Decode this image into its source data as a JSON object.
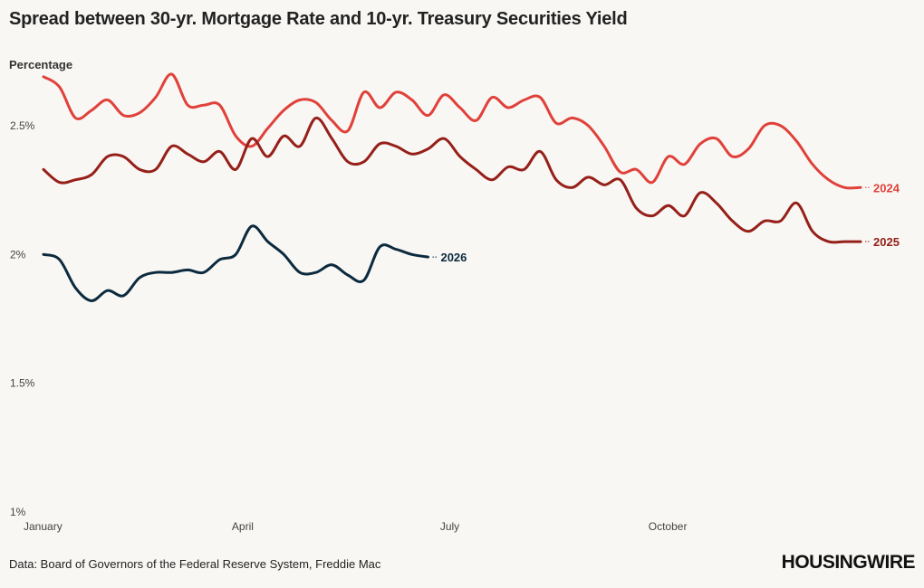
{
  "chart_data": {
    "type": "line",
    "title": "Spread between 30-yr. Mortgage Rate and 10-yr. Treasury Securities Yield",
    "ylabel": "Percentage",
    "xlabel": "",
    "ylim": [
      1,
      2.7
    ],
    "yticks": [
      {
        "value": 1,
        "label": "1%"
      },
      {
        "value": 1.5,
        "label": "1.5%"
      },
      {
        "value": 2,
        "label": "2%"
      },
      {
        "value": 2.5,
        "label": "2.5%"
      }
    ],
    "xlim": [
      1,
      52
    ],
    "xticks": [
      {
        "value": 1,
        "label": "January"
      },
      {
        "value": 14,
        "label": "April"
      },
      {
        "value": 27,
        "label": "July"
      },
      {
        "value": 40,
        "label": "October"
      }
    ],
    "grid": false,
    "legend": "direct-labels",
    "series": [
      {
        "name": "2024",
        "color": "#e0413a",
        "x": [
          1,
          2,
          3,
          4,
          5,
          6,
          7,
          8,
          9,
          10,
          11,
          12,
          13,
          14,
          15,
          16,
          17,
          18,
          19,
          20,
          21,
          22,
          23,
          24,
          25,
          26,
          27,
          28,
          29,
          30,
          31,
          32,
          33,
          34,
          35,
          36,
          37,
          38,
          39,
          40,
          41,
          42,
          43,
          44,
          45,
          46,
          47,
          48,
          49,
          50,
          51,
          52
        ],
        "values": [
          2.69,
          2.65,
          2.53,
          2.56,
          2.6,
          2.54,
          2.55,
          2.61,
          2.7,
          2.58,
          2.58,
          2.58,
          2.46,
          2.42,
          2.49,
          2.56,
          2.6,
          2.59,
          2.52,
          2.48,
          2.63,
          2.57,
          2.63,
          2.6,
          2.54,
          2.62,
          2.57,
          2.52,
          2.61,
          2.57,
          2.6,
          2.61,
          2.51,
          2.53,
          2.5,
          2.42,
          2.32,
          2.33,
          2.28,
          2.38,
          2.35,
          2.43,
          2.45,
          2.38,
          2.41,
          2.5,
          2.5,
          2.44,
          2.35,
          2.29,
          2.26,
          2.26
        ]
      },
      {
        "name": "2025",
        "color": "#962019",
        "x": [
          1,
          2,
          3,
          4,
          5,
          6,
          7,
          8,
          9,
          10,
          11,
          12,
          13,
          14,
          15,
          16,
          17,
          18,
          19,
          20,
          21,
          22,
          23,
          24,
          25,
          26,
          27,
          28,
          29,
          30,
          31,
          32,
          33,
          34,
          35,
          36,
          37,
          38,
          39,
          40,
          41,
          42,
          43,
          44,
          45,
          46,
          47,
          48,
          49,
          50,
          51,
          52
        ],
        "values": [
          2.33,
          2.28,
          2.29,
          2.31,
          2.38,
          2.38,
          2.33,
          2.33,
          2.42,
          2.39,
          2.36,
          2.4,
          2.33,
          2.45,
          2.38,
          2.46,
          2.42,
          2.53,
          2.45,
          2.36,
          2.36,
          2.43,
          2.42,
          2.39,
          2.41,
          2.45,
          2.38,
          2.33,
          2.29,
          2.34,
          2.33,
          2.4,
          2.29,
          2.26,
          2.3,
          2.27,
          2.29,
          2.18,
          2.15,
          2.19,
          2.15,
          2.24,
          2.2,
          2.13,
          2.09,
          2.13,
          2.13,
          2.2,
          2.09,
          2.05,
          2.05,
          2.05
        ]
      },
      {
        "name": "2026",
        "color": "#0c2a3e",
        "x": [
          1,
          2,
          3,
          4,
          5,
          6,
          7,
          8,
          9,
          10,
          11,
          12,
          13,
          14,
          15,
          16,
          17,
          18,
          19,
          20,
          21,
          22,
          23,
          24,
          25
        ],
        "values": [
          2.0,
          1.98,
          1.87,
          1.82,
          1.86,
          1.84,
          1.91,
          1.93,
          1.93,
          1.94,
          1.93,
          1.98,
          2.0,
          2.11,
          2.05,
          2.0,
          1.93,
          1.93,
          1.96,
          1.92,
          1.9,
          2.03,
          2.02,
          2.0,
          1.99
        ]
      }
    ]
  },
  "source": "Data: Board of Governors of the Federal Reserve System, Freddie Mac",
  "logo": "HOUSINGWIRE"
}
